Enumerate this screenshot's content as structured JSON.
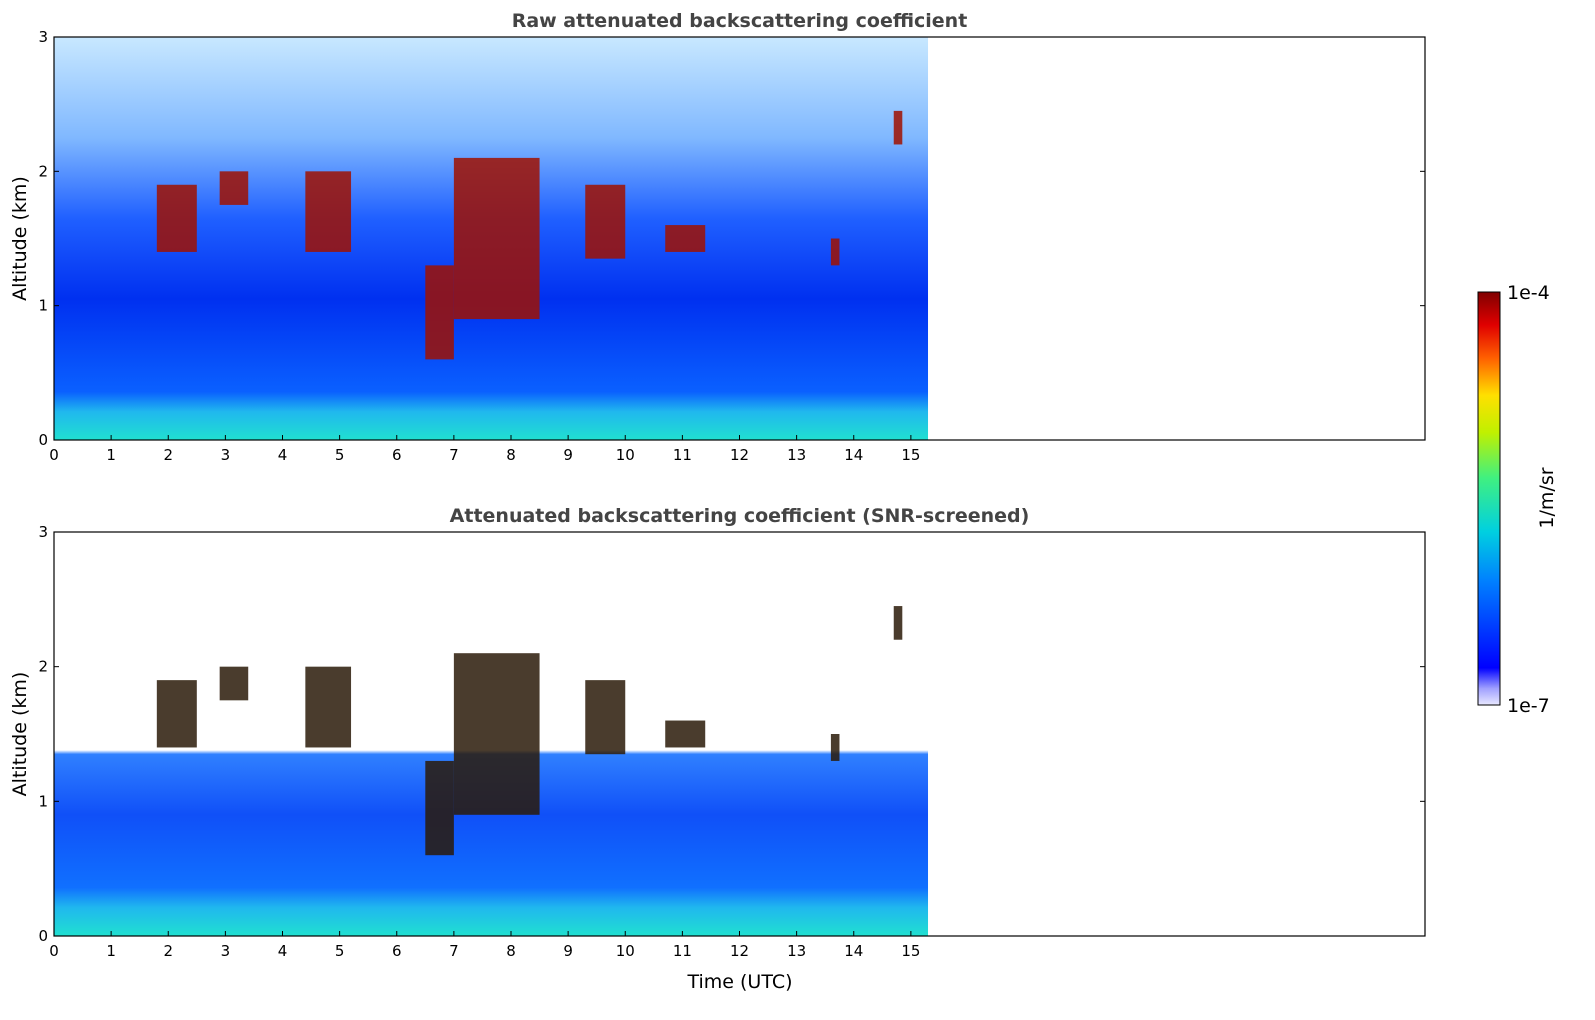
{
  "chart_data": [
    {
      "type": "heatmap",
      "title": "Raw attenuated backscattering coefficient",
      "xlabel": "",
      "ylabel": "Altitude (km)",
      "xlim": [
        0,
        24
      ],
      "ylim": [
        0,
        3
      ],
      "data_extent_x": [
        0,
        15.3
      ],
      "x_ticks": [
        "0",
        "1",
        "2",
        "3",
        "4",
        "5",
        "6",
        "7",
        "8",
        "9",
        "10",
        "11",
        "12",
        "13",
        "14",
        "15"
      ],
      "y_ticks": [
        "0",
        "1",
        "2",
        "3"
      ],
      "cloud_layers": [
        {
          "t0": 1.8,
          "t1": 2.5,
          "z0": 1.4,
          "z1": 1.9
        },
        {
          "t0": 2.9,
          "t1": 3.4,
          "z0": 1.75,
          "z1": 2.0
        },
        {
          "t0": 4.4,
          "t1": 5.2,
          "z0": 1.4,
          "z1": 2.0
        },
        {
          "t0": 6.5,
          "t1": 7.0,
          "z0": 0.6,
          "z1": 1.3
        },
        {
          "t0": 7.0,
          "t1": 8.5,
          "z0": 0.9,
          "z1": 2.1
        },
        {
          "t0": 9.3,
          "t1": 10.0,
          "z0": 1.35,
          "z1": 1.9
        },
        {
          "t0": 10.7,
          "t1": 11.4,
          "z0": 1.4,
          "z1": 1.6
        },
        {
          "t0": 13.6,
          "t1": 13.75,
          "z0": 1.3,
          "z1": 1.5
        },
        {
          "t0": 14.7,
          "t1": 14.85,
          "z0": 2.2,
          "z1": 2.45
        }
      ]
    },
    {
      "type": "heatmap",
      "title": "Attenuated backscattering coefficient (SNR-screened)",
      "xlabel": "Time (UTC)",
      "ylabel": "Altitude (km)",
      "xlim": [
        0,
        24
      ],
      "ylim": [
        0,
        3
      ],
      "data_extent_x": [
        0,
        15.3
      ],
      "x_ticks": [
        "0",
        "1",
        "2",
        "3",
        "4",
        "5",
        "6",
        "7",
        "8",
        "9",
        "10",
        "11",
        "12",
        "13",
        "14",
        "15"
      ],
      "y_ticks": [
        "0",
        "1",
        "2",
        "3"
      ],
      "cloud_layers": [
        {
          "t0": 1.8,
          "t1": 2.5,
          "z0": 1.4,
          "z1": 1.9
        },
        {
          "t0": 2.9,
          "t1": 3.4,
          "z0": 1.75,
          "z1": 2.0
        },
        {
          "t0": 4.4,
          "t1": 5.2,
          "z0": 1.4,
          "z1": 2.0
        },
        {
          "t0": 6.5,
          "t1": 7.0,
          "z0": 0.6,
          "z1": 1.3
        },
        {
          "t0": 7.0,
          "t1": 8.5,
          "z0": 0.9,
          "z1": 2.1
        },
        {
          "t0": 9.3,
          "t1": 10.0,
          "z0": 1.35,
          "z1": 1.9
        },
        {
          "t0": 10.7,
          "t1": 11.4,
          "z0": 1.4,
          "z1": 1.6
        },
        {
          "t0": 13.6,
          "t1": 13.75,
          "z0": 1.3,
          "z1": 1.5
        },
        {
          "t0": 14.7,
          "t1": 14.85,
          "z0": 2.2,
          "z1": 2.45
        }
      ]
    }
  ],
  "colorbar": {
    "label": "1/m/sr",
    "max_label": "1e-4",
    "min_label": "1e-7",
    "colormap": "jet",
    "scale": "log"
  }
}
